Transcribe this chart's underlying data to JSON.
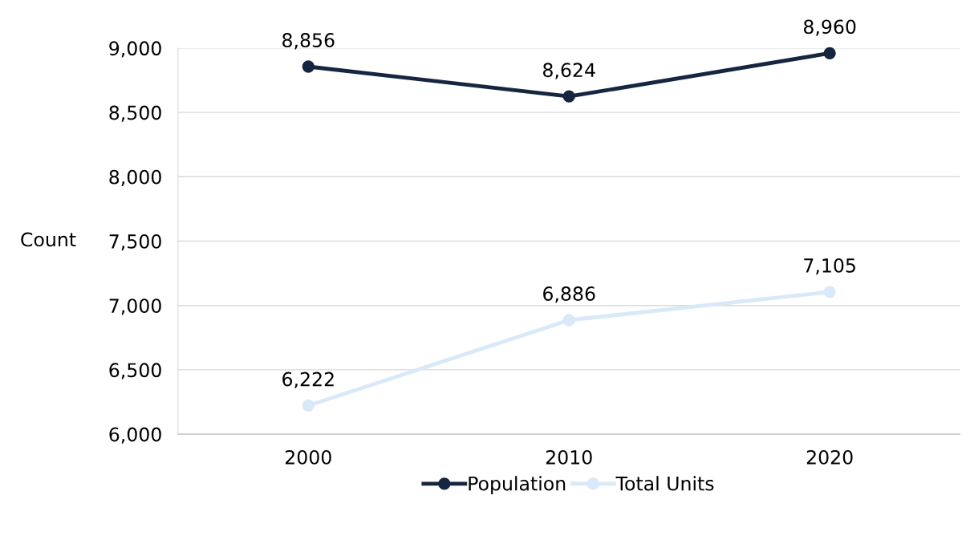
{
  "chart_data": {
    "type": "line",
    "ylabel": "Count",
    "categories": [
      "2000",
      "2010",
      "2020"
    ],
    "series": [
      {
        "name": "Population",
        "color": "#172640",
        "values": [
          8856,
          8624,
          8960
        ],
        "value_labels": [
          "8,856",
          "8,624",
          "8,960"
        ]
      },
      {
        "name": "Total Units",
        "color": "#dae9f7",
        "values": [
          6222,
          6886,
          7105
        ],
        "value_labels": [
          "6,222",
          "6,886",
          "7,105"
        ]
      }
    ],
    "ylim": [
      6000,
      9000
    ],
    "yticks": [
      {
        "value": 6000,
        "label": "6,000"
      },
      {
        "value": 6500,
        "label": "6,500"
      },
      {
        "value": 7000,
        "label": "7,000"
      },
      {
        "value": 7500,
        "label": "7,500"
      },
      {
        "value": 8000,
        "label": "8,000"
      },
      {
        "value": 8500,
        "label": "8,500"
      },
      {
        "value": 9000,
        "label": "9,000"
      }
    ],
    "grid": "y",
    "legend": "bottom",
    "marker": "circle",
    "line_style": "solid"
  }
}
